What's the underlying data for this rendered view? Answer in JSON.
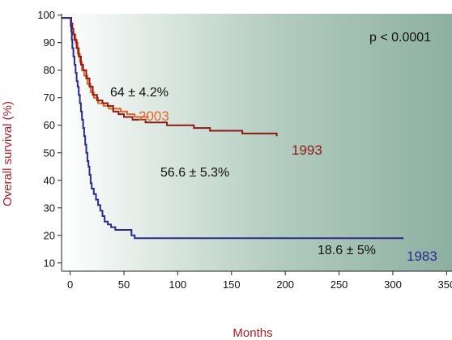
{
  "chart_data": {
    "type": "line",
    "title": "",
    "xlabel": "Months",
    "ylabel": "Overall survival (%)",
    "xlim": [
      -8,
      355
    ],
    "ylim": [
      7,
      100.5
    ],
    "xticks": [
      0,
      50,
      100,
      150,
      200,
      250,
      300,
      350
    ],
    "yticks": [
      10,
      20,
      30,
      40,
      50,
      60,
      70,
      80,
      90,
      100
    ],
    "xtick_labels": [
      "0",
      "50",
      "100",
      "150",
      "200",
      "250",
      "300",
      "350"
    ],
    "ytick_labels": [
      "10",
      "20",
      "30",
      "40",
      "50",
      "60",
      "70",
      "80",
      "90",
      "100"
    ],
    "grid": false,
    "annotations": {
      "pvalue": "p < 0.0001",
      "survival_2003": "64 ± 4.2%",
      "survival_1993": "56.6 ± 5.3%",
      "survival_1983": "18.6 ± 5%"
    },
    "series": [
      {
        "name": "2003",
        "color": "#e0662a",
        "points": [
          [
            -8,
            99
          ],
          [
            0,
            99
          ],
          [
            1,
            97
          ],
          [
            2,
            95
          ],
          [
            3,
            93
          ],
          [
            5,
            90
          ],
          [
            7,
            86
          ],
          [
            9,
            83
          ],
          [
            11,
            80
          ],
          [
            13,
            78
          ],
          [
            16,
            75
          ],
          [
            19,
            72
          ],
          [
            22,
            70
          ],
          [
            26,
            68
          ],
          [
            31,
            67
          ],
          [
            36,
            66
          ],
          [
            41,
            66
          ],
          [
            47,
            65
          ],
          [
            53,
            64
          ],
          [
            57,
            64
          ],
          [
            60,
            63
          ],
          [
            73,
            63
          ]
        ]
      },
      {
        "name": "1993",
        "color": "#8b1a14",
        "points": [
          [
            -8,
            99
          ],
          [
            0,
            99
          ],
          [
            1,
            97
          ],
          [
            2,
            95
          ],
          [
            3,
            93
          ],
          [
            4,
            91
          ],
          [
            6,
            88
          ],
          [
            8,
            85
          ],
          [
            10,
            82
          ],
          [
            12,
            80
          ],
          [
            15,
            77
          ],
          [
            18,
            74
          ],
          [
            21,
            71
          ],
          [
            25,
            69
          ],
          [
            30,
            68
          ],
          [
            35,
            67
          ],
          [
            40,
            65
          ],
          [
            45,
            64
          ],
          [
            50,
            63
          ],
          [
            58,
            62
          ],
          [
            70,
            61
          ],
          [
            80,
            61
          ],
          [
            90,
            60
          ],
          [
            100,
            60
          ],
          [
            115,
            59
          ],
          [
            125,
            59
          ],
          [
            130,
            58
          ],
          [
            145,
            58
          ],
          [
            160,
            57
          ],
          [
            185,
            57
          ],
          [
            192,
            56
          ]
        ]
      },
      {
        "name": "1983",
        "color": "#2b2a8c",
        "points": [
          [
            -8,
            99
          ],
          [
            0,
            99
          ],
          [
            0.5,
            96
          ],
          [
            1,
            94
          ],
          [
            1.5,
            91
          ],
          [
            2,
            88
          ],
          [
            3,
            85
          ],
          [
            4,
            82
          ],
          [
            5,
            79
          ],
          [
            6,
            76
          ],
          [
            7,
            74
          ],
          [
            8,
            71
          ],
          [
            9,
            68
          ],
          [
            10,
            65
          ],
          [
            11,
            62
          ],
          [
            12,
            59
          ],
          [
            13,
            56
          ],
          [
            14,
            53
          ],
          [
            15,
            50
          ],
          [
            16,
            47
          ],
          [
            17,
            45
          ],
          [
            18,
            42
          ],
          [
            19,
            39
          ],
          [
            20,
            37
          ],
          [
            22,
            35
          ],
          [
            24,
            33
          ],
          [
            26,
            31
          ],
          [
            28,
            29
          ],
          [
            30,
            27
          ],
          [
            32,
            25
          ],
          [
            35,
            24
          ],
          [
            38,
            23
          ],
          [
            42,
            22
          ],
          [
            47,
            22
          ],
          [
            52,
            22
          ],
          [
            57,
            20
          ],
          [
            60,
            19
          ],
          [
            80,
            19
          ],
          [
            120,
            19
          ],
          [
            200,
            19
          ],
          [
            260,
            19
          ],
          [
            310,
            19
          ]
        ]
      }
    ]
  },
  "labels": {
    "series_2003": "2003",
    "series_1993": "1993",
    "series_1983": "1983"
  }
}
